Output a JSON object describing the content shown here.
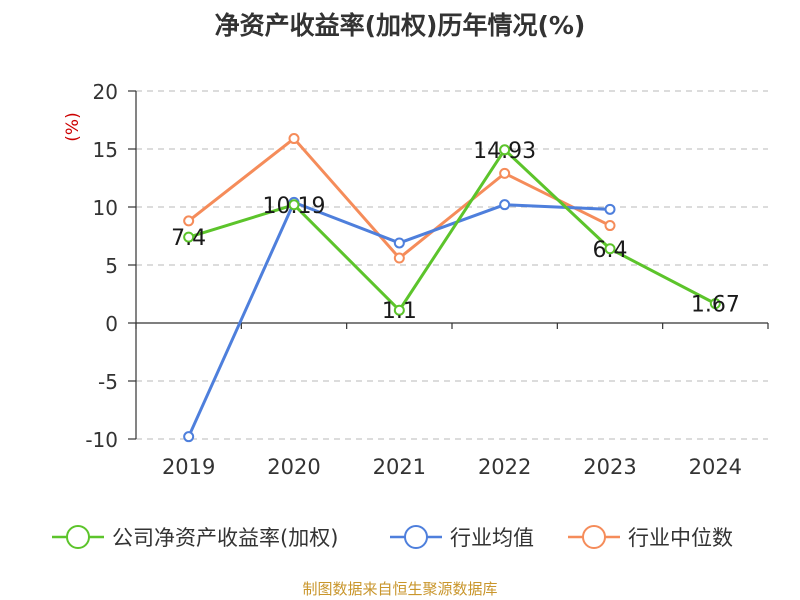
{
  "page_title": "净资产收益率(加权)历年情况(%)",
  "source_note": "制图数据来自恒生聚源数据库",
  "chart_data": {
    "type": "line",
    "title": "净资产收益率(加权)历年情况(%)",
    "ylabel": "(%)",
    "xlabel": "",
    "categories": [
      "2019",
      "2020",
      "2021",
      "2022",
      "2023",
      "2024"
    ],
    "ylim": [
      -10,
      20
    ],
    "yticks": [
      -10,
      -5,
      0,
      5,
      10,
      15,
      20
    ],
    "grid": true,
    "legend_position": "bottom",
    "series": [
      {
        "name": "公司净资产收益率(加权)",
        "color": "#5cc42b",
        "values": [
          7.4,
          10.19,
          1.1,
          14.93,
          6.4,
          1.67
        ],
        "labels": [
          "7.4",
          "10.19",
          "1.1",
          "14.93",
          "6.4",
          "1.67"
        ]
      },
      {
        "name": "行业均值",
        "color": "#4e7fdc",
        "values": [
          -9.8,
          10.4,
          6.9,
          10.2,
          9.8,
          null
        ],
        "labels": []
      },
      {
        "name": "行业中位数",
        "color": "#f58c5a",
        "values": [
          8.8,
          15.9,
          5.6,
          12.9,
          8.4,
          null
        ],
        "labels": []
      }
    ]
  }
}
